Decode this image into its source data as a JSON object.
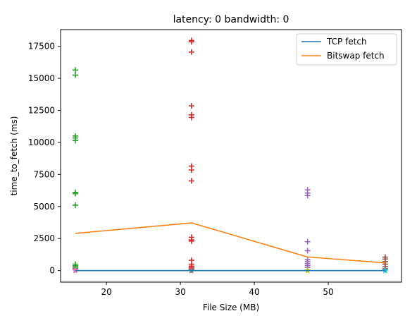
{
  "chart_data": {
    "type": "line",
    "title": "latency: 0 bandwidth: 0",
    "xlabel": "File Size (MB)",
    "ylabel": "time_to_fetch (ms)",
    "xlim": [
      13.8,
      59.9
    ],
    "ylim": [
      -900,
      18800
    ],
    "xticks": [
      20,
      30,
      40,
      50
    ],
    "yticks": [
      0,
      2500,
      5000,
      7500,
      10000,
      12500,
      15000,
      17500
    ],
    "grid": false,
    "legend_position": "top-right",
    "series": [
      {
        "name": "TCP fetch",
        "color": "#1f77b4",
        "x": [
          15.8,
          31.5,
          47.2,
          57.7
        ],
        "y": [
          0,
          0,
          0,
          0
        ]
      },
      {
        "name": "Bitswap fetch",
        "color": "#ff7f0e",
        "x": [
          15.8,
          31.5,
          47.2,
          57.7
        ],
        "y": [
          2900,
          3720,
          1060,
          600
        ]
      }
    ],
    "scatter": [
      {
        "color": "#2ca02c",
        "marker": "+",
        "x": [
          15.8,
          15.8,
          15.8,
          15.8,
          15.8,
          15.8,
          15.8,
          15.8,
          15.8,
          15.8,
          15.8,
          15.8,
          15.8
        ],
        "y": [
          15650,
          15250,
          10500,
          10350,
          10150,
          6100,
          6000,
          5100,
          500,
          380,
          280,
          180,
          80
        ]
      },
      {
        "color": "#d62728",
        "marker": "+",
        "x": [
          31.5,
          31.5,
          31.5,
          31.5,
          31.5,
          31.5,
          31.5,
          31.5,
          31.5,
          31.5,
          31.5,
          31.5,
          31.5,
          31.5,
          31.5,
          31.5,
          31.5,
          31.5
        ],
        "y": [
          17950,
          17850,
          17050,
          12850,
          12150,
          11950,
          8150,
          7850,
          7000,
          2600,
          2400,
          2300,
          800,
          500,
          350,
          250,
          150,
          50
        ]
      },
      {
        "color": "#9467bd",
        "marker": "+",
        "x": [
          47.2,
          47.2,
          47.2,
          47.2,
          47.2,
          47.2,
          47.2,
          47.2,
          47.2,
          47.2
        ],
        "y": [
          6300,
          6050,
          5850,
          2250,
          1550,
          850,
          700,
          550,
          400,
          250
        ]
      },
      {
        "color": "#8c564b",
        "marker": "+",
        "x": [
          57.7,
          57.7,
          57.7,
          57.7,
          57.7,
          57.7
        ],
        "y": [
          1050,
          900,
          700,
          500,
          300,
          150
        ]
      },
      {
        "color": "#e377c2",
        "marker": "*",
        "x": [
          15.8,
          15.8
        ],
        "y": [
          0,
          60
        ]
      },
      {
        "color": "#7f7f7f",
        "marker": "*",
        "x": [
          31.5,
          31.5
        ],
        "y": [
          0,
          40
        ]
      },
      {
        "color": "#bcbd22",
        "marker": "*",
        "x": [
          47.2
        ],
        "y": [
          0
        ]
      },
      {
        "color": "#17becf",
        "marker": "*",
        "x": [
          57.7
        ],
        "y": [
          0
        ]
      }
    ]
  }
}
